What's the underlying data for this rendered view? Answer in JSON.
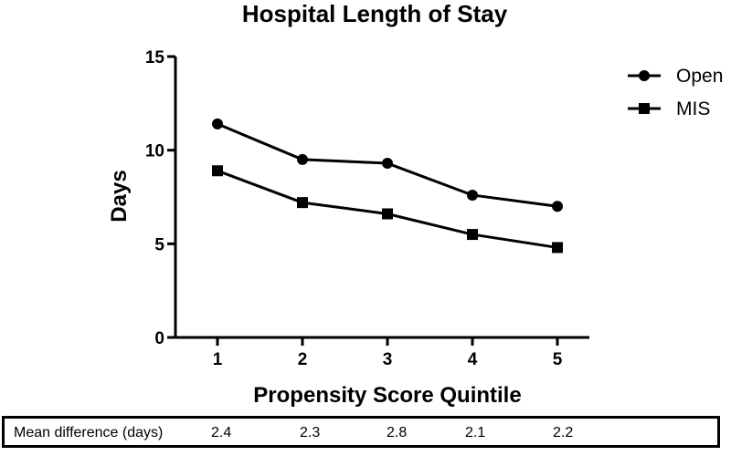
{
  "chart_data": {
    "type": "line",
    "title": "Hospital Length of Stay",
    "xlabel": "Propensity Score Quintile",
    "ylabel": "Days",
    "categories": [
      "1",
      "2",
      "3",
      "4",
      "5"
    ],
    "ylim": [
      0,
      15
    ],
    "yticks": [
      "0",
      "5",
      "10",
      "15"
    ],
    "series": [
      {
        "name": "Open",
        "marker": "circle",
        "values": [
          11.4,
          9.5,
          9.3,
          7.6,
          7.0
        ]
      },
      {
        "name": "MIS",
        "marker": "square",
        "values": [
          8.9,
          7.2,
          6.6,
          5.5,
          4.8
        ]
      }
    ],
    "legend_position": "top-right",
    "grid": false
  },
  "table": {
    "label": "Mean difference (days)",
    "values": [
      "2.4",
      "2.3",
      "2.8",
      "2.1",
      "2.2"
    ]
  }
}
